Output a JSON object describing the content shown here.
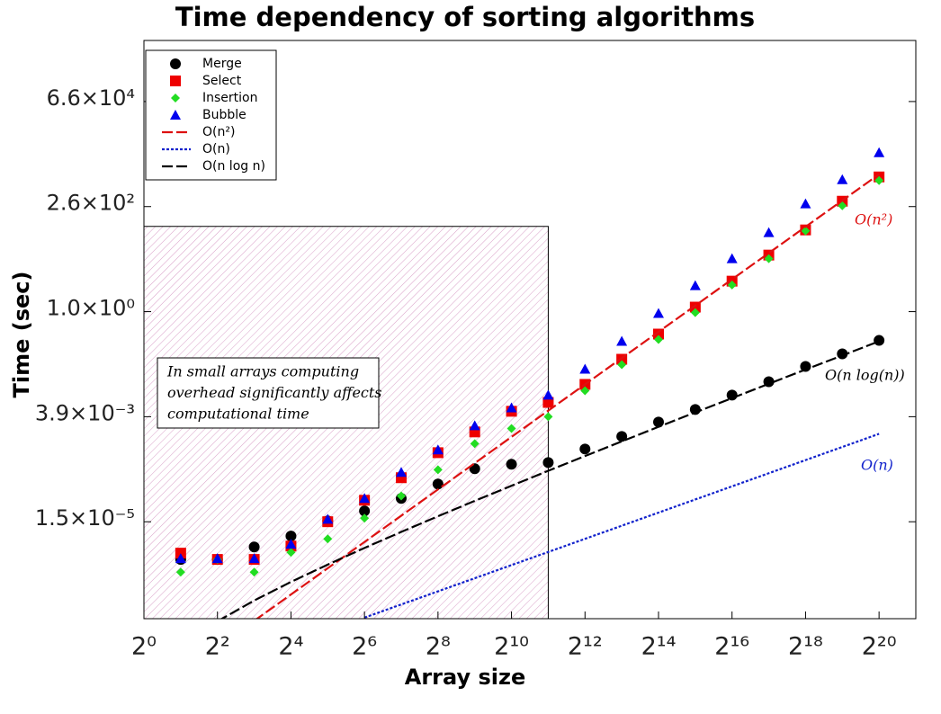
{
  "chart_data": {
    "type": "scatter",
    "title": "Time dependency of sorting algorithms",
    "xlabel": "Array size",
    "ylabel": "Time (sec)",
    "xscale": "log",
    "yscale": "log",
    "xlim": [
      1,
      2097152
    ],
    "ylim": [
      9.16e-08,
      1645000
    ],
    "xticks": [
      {
        "value": 1,
        "label": "2⁰"
      },
      {
        "value": 4,
        "label": "2²"
      },
      {
        "value": 16,
        "label": "2⁴"
      },
      {
        "value": 64,
        "label": "2⁶"
      },
      {
        "value": 256,
        "label": "2⁸"
      },
      {
        "value": 1024,
        "label": "2¹⁰"
      },
      {
        "value": 4096,
        "label": "2¹²"
      },
      {
        "value": 16384,
        "label": "2¹⁴"
      },
      {
        "value": 65536,
        "label": "2¹⁶"
      },
      {
        "value": 262144,
        "label": "2¹⁸"
      },
      {
        "value": 1048576,
        "label": "2²⁰"
      }
    ],
    "yticks": [
      {
        "value": 1.52587890625e-05,
        "label": "1.5×10⁻⁵"
      },
      {
        "value": 0.00390625,
        "label": "3.9×10⁻³"
      },
      {
        "value": 1,
        "label": "1.0×10⁰"
      },
      {
        "value": 256,
        "label": "2.6×10²"
      },
      {
        "value": 65536,
        "label": "6.6×10⁴"
      }
    ],
    "legend": "upper left",
    "series": [
      {
        "name": "Merge",
        "marker": "circle",
        "color": "#000000",
        "x": [
          2,
          4,
          8,
          16,
          32,
          64,
          128,
          256,
          512,
          1024,
          2048,
          4096,
          8192,
          16384,
          32768,
          65536,
          131072,
          262144,
          524288,
          1048576
        ],
        "values": [
          2.09e-06,
          2.09e-06,
          4.03e-06,
          7.17e-06,
          1.6e-05,
          2.69e-05,
          5.24e-05,
          0.000112,
          0.00025,
          0.000317,
          0.000348,
          0.00071,
          0.00138,
          0.00294,
          0.00572,
          0.0122,
          0.0248,
          0.0555,
          0.108,
          0.219
        ]
      },
      {
        "name": "Select",
        "marker": "square",
        "color": "#ee0000",
        "x": [
          2,
          4,
          8,
          16,
          32,
          64,
          128,
          256,
          512,
          1024,
          2048,
          4096,
          8192,
          16384,
          32768,
          65536,
          131072,
          262144,
          524288,
          1048576
        ],
        "values": [
          2.91e-06,
          2.09e-06,
          2.09e-06,
          4.24e-06,
          1.53e-05,
          4.75e-05,
          0.000156,
          0.000585,
          0.00175,
          0.0052,
          0.0083,
          0.0215,
          0.081,
          0.306,
          1.27,
          5.0,
          19.8,
          74.7,
          340,
          1225
        ]
      },
      {
        "name": "Insertion",
        "marker": "diamond",
        "color": "#22dd22",
        "x": [
          2,
          4,
          8,
          16,
          32,
          64,
          128,
          256,
          512,
          1024,
          2048,
          4096,
          8192,
          16384,
          32768,
          65536,
          131072,
          262144,
          524288,
          1048576
        ],
        "values": [
          1.07e-06,
          2.09e-06,
          1.07e-06,
          3.04e-06,
          6.2e-06,
          1.84e-05,
          5.97e-05,
          0.000238,
          0.000943,
          0.0021,
          0.0039,
          0.0154,
          0.061,
          0.23,
          0.95,
          4.1,
          16.4,
          71,
          269,
          1012
        ]
      },
      {
        "name": "Bubble",
        "marker": "triangle",
        "color": "#0000ee",
        "x": [
          2,
          4,
          8,
          16,
          32,
          64,
          128,
          256,
          512,
          1024,
          2048,
          4096,
          8192,
          16384,
          32768,
          65536,
          131072,
          262144,
          524288,
          1048576
        ],
        "values": [
          2.19e-06,
          2.19e-06,
          2.19e-06,
          4.67e-06,
          1.75e-05,
          5.24e-05,
          0.000207,
          0.00068,
          0.00243,
          0.00625,
          0.0122,
          0.048,
          0.209,
          0.91,
          3.95,
          16.4,
          64.8,
          296,
          1060,
          4400
        ]
      },
      {
        "name": "O(n²)",
        "marker": "line",
        "linestyle": "dashed",
        "color": "#dd1111",
        "x": [
          8,
          1048576
        ],
        "values": [
          8.2e-08,
          1410
        ]
      },
      {
        "name": "O(n)",
        "marker": "line",
        "linestyle": "dotted",
        "color": "#1122cc",
        "x": [
          64,
          1048576
        ],
        "values": [
          9.7e-08,
          0.00158
        ]
      },
      {
        "name": "O(n log n)",
        "marker": "line",
        "linestyle": "dashed",
        "color": "#000000",
        "x": [
          4,
          8,
          16,
          32,
          64,
          128,
          256,
          512,
          1024,
          2048,
          4096,
          8192,
          16384,
          32768,
          65536,
          131072,
          262144,
          524288,
          1048576
        ],
        "values": [
          7.97e-08,
          2.39e-07,
          6.38e-07,
          1.59e-06,
          3.83e-06,
          8.93e-06,
          2.04e-05,
          4.59e-05,
          0.000102,
          0.000225,
          0.00049,
          0.00106,
          0.00229,
          0.0049,
          0.0104,
          0.0222,
          0.047,
          0.099,
          0.209
        ]
      }
    ],
    "highlight": {
      "x": [
        1,
        2048
      ],
      "y": [
        9.16e-08,
        90
      ]
    },
    "note": [
      "In small arrays computing",
      "overhead significantly affects",
      "computational time"
    ],
    "annotations": [
      {
        "text": "O(n²)",
        "color": "#dd1111"
      },
      {
        "text": "O(n log(n))",
        "color": "#000000"
      },
      {
        "text": "O(n)",
        "color": "#1122cc"
      }
    ]
  }
}
